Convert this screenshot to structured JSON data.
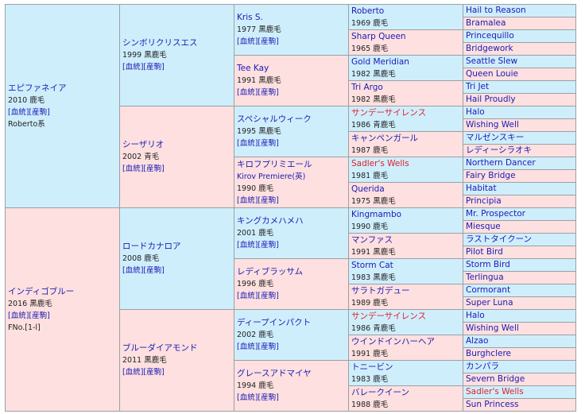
{
  "gen1": [
    {
      "name": "エピファネイア",
      "year": "2010",
      "coat": "鹿毛",
      "links": "[血統][産駒]",
      "extra": "Roberto系"
    },
    {
      "name": "インディゴブルー",
      "year": "2016",
      "coat": "黒鹿毛",
      "links": "[血統][産駒]",
      "extra": "FNo.[1-l]"
    }
  ],
  "gen2": [
    {
      "name": "シンボリクリスエス",
      "year": "1999",
      "coat": "黒鹿毛",
      "links": "[血統][産駒]"
    },
    {
      "name": "シーザリオ",
      "year": "2002",
      "coat": "青毛",
      "links": "[血統][産駒]"
    },
    {
      "name": "ロードカナロア",
      "year": "2008",
      "coat": "鹿毛",
      "links": "[血統][産駒]"
    },
    {
      "name": "ブルーダイアモンド",
      "year": "2011",
      "coat": "黒鹿毛",
      "links": "[血統][産駒]"
    }
  ],
  "gen3": [
    {
      "name": "Kris S.",
      "alt": "",
      "year": "1977",
      "coat": "黒鹿毛",
      "links": "[血統][産駒]"
    },
    {
      "name": "Tee Kay",
      "alt": "",
      "year": "1991",
      "coat": "黒鹿毛",
      "links": "[血統][産駒]"
    },
    {
      "name": "スペシャルウィーク",
      "alt": "",
      "year": "1995",
      "coat": "黒鹿毛",
      "links": "[血統][産駒]"
    },
    {
      "name": "キロフプリミエール",
      "alt": "Kirov Premiere(英)",
      "year": "1990",
      "coat": "鹿毛",
      "links": "[血統][産駒]"
    },
    {
      "name": "キングカメハメハ",
      "alt": "",
      "year": "2001",
      "coat": "鹿毛",
      "links": "[血統][産駒]"
    },
    {
      "name": "レディブラッサム",
      "alt": "",
      "year": "1996",
      "coat": "鹿毛",
      "links": "[血統][産駒]"
    },
    {
      "name": "ディープインパクト",
      "alt": "",
      "year": "2002",
      "coat": "鹿毛",
      "links": "[血統][産駒]"
    },
    {
      "name": "グレースアドマイヤ",
      "alt": "",
      "year": "1994",
      "coat": "鹿毛",
      "links": "[血統][産駒]"
    }
  ],
  "gen4": [
    {
      "name": "Roberto",
      "year": "1969",
      "coat": "鹿毛",
      "red": false
    },
    {
      "name": "Sharp Queen",
      "year": "1965",
      "coat": "鹿毛",
      "red": false
    },
    {
      "name": "Gold Meridian",
      "year": "1982",
      "coat": "黒鹿毛",
      "red": false
    },
    {
      "name": "Tri Argo",
      "year": "1982",
      "coat": "黒鹿毛",
      "red": false
    },
    {
      "name": "サンデーサイレンス",
      "year": "1986",
      "coat": "青鹿毛",
      "red": true
    },
    {
      "name": "キャンペンガール",
      "year": "1987",
      "coat": "鹿毛",
      "red": false
    },
    {
      "name": "Sadler's Wells",
      "year": "1981",
      "coat": "鹿毛",
      "red": true
    },
    {
      "name": "Querida",
      "year": "1975",
      "coat": "黒鹿毛",
      "red": false
    },
    {
      "name": "Kingmambo",
      "year": "1990",
      "coat": "鹿毛",
      "red": false
    },
    {
      "name": "マンファス",
      "year": "1991",
      "coat": "黒鹿毛",
      "red": false
    },
    {
      "name": "Storm Cat",
      "year": "1983",
      "coat": "黒鹿毛",
      "red": false
    },
    {
      "name": "サラトガデュー",
      "year": "1989",
      "coat": "鹿毛",
      "red": false
    },
    {
      "name": "サンデーサイレンス",
      "year": "1986",
      "coat": "青鹿毛",
      "red": true
    },
    {
      "name": "ウインドインハーヘア",
      "year": "1991",
      "coat": "鹿毛",
      "red": false
    },
    {
      "name": "トニービン",
      "year": "1983",
      "coat": "鹿毛",
      "red": false
    },
    {
      "name": "バレークイーン",
      "year": "1988",
      "coat": "鹿毛",
      "red": false
    }
  ],
  "gen5": [
    {
      "name": "Hail to Reason",
      "red": false
    },
    {
      "name": "Bramalea",
      "red": false
    },
    {
      "name": "Princequillo",
      "red": false
    },
    {
      "name": "Bridgework",
      "red": false
    },
    {
      "name": "Seattle Slew",
      "red": false
    },
    {
      "name": "Queen Louie",
      "red": false
    },
    {
      "name": "Tri Jet",
      "red": false
    },
    {
      "name": "Hail Proudly",
      "red": false
    },
    {
      "name": "Halo",
      "red": false
    },
    {
      "name": "Wishing Well",
      "red": false
    },
    {
      "name": "マルゼンスキー",
      "red": false
    },
    {
      "name": "レディーシラオキ",
      "red": false
    },
    {
      "name": "Northern Dancer",
      "red": false
    },
    {
      "name": "Fairy Bridge",
      "red": false
    },
    {
      "name": "Habitat",
      "red": false
    },
    {
      "name": "Principia",
      "red": false
    },
    {
      "name": "Mr. Prospector",
      "red": false
    },
    {
      "name": "Miesque",
      "red": false
    },
    {
      "name": "ラストタイクーン",
      "red": false
    },
    {
      "name": "Pilot Bird",
      "red": false
    },
    {
      "name": "Storm Bird",
      "red": false
    },
    {
      "name": "Terlingua",
      "red": false
    },
    {
      "name": "Cormorant",
      "red": false
    },
    {
      "name": "Super Luna",
      "red": false
    },
    {
      "name": "Halo",
      "red": false
    },
    {
      "name": "Wishing Well",
      "red": false
    },
    {
      "name": "Alzao",
      "red": false
    },
    {
      "name": "Burghclere",
      "red": false
    },
    {
      "name": "カンパラ",
      "red": false
    },
    {
      "name": "Severn Bridge",
      "red": false
    },
    {
      "name": "Sadler's Wells",
      "red": true
    },
    {
      "name": "Sun Princess",
      "red": false
    }
  ]
}
